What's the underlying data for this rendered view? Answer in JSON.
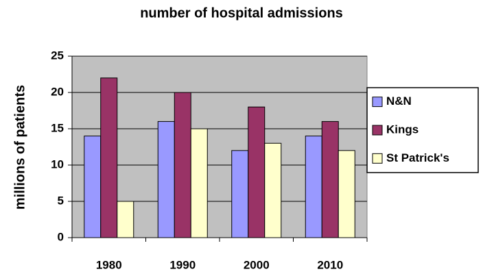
{
  "chart_data": {
    "type": "bar",
    "title": "number of hospital admissions",
    "y_label": "millions of patients",
    "categories": [
      "1980",
      "1990",
      "2000",
      "2010"
    ],
    "series": [
      {
        "name": "N&N",
        "color": "#9999ff",
        "values": [
          14,
          16,
          12,
          14
        ]
      },
      {
        "name": "Kings",
        "color": "#993366",
        "values": [
          22,
          20,
          18,
          16
        ]
      },
      {
        "name": "St Patrick's",
        "color": "#ffffcc",
        "values": [
          5,
          15,
          13,
          12
        ]
      }
    ],
    "ylim": [
      0,
      25
    ],
    "yticks": [
      0,
      5,
      10,
      15,
      20,
      25
    ],
    "grid": true,
    "legend": "right"
  }
}
